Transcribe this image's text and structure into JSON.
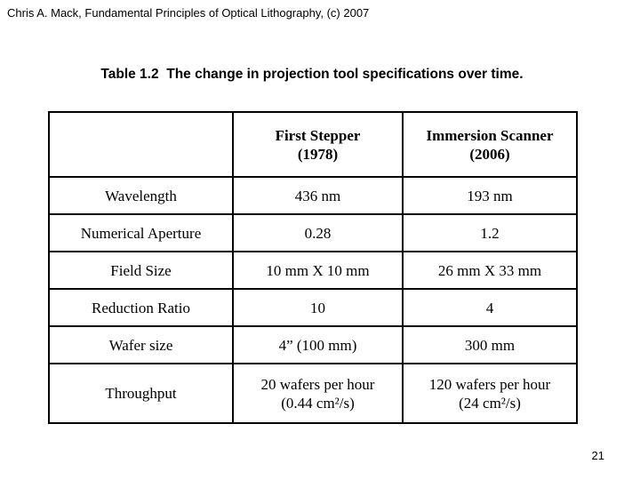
{
  "slide": {
    "attribution": "Chris A. Mack, Fundamental Principles of Optical Lithography, (c) 2007",
    "page_number": "21"
  },
  "colors": {
    "background": "#ffffff",
    "text": "#000000",
    "table_border": "#000000"
  },
  "table": {
    "title": "Table 1.2  The change in projection tool specifications over time.",
    "columns": [
      "",
      "First Stepper\n(1978)",
      "Immersion Scanner\n(2006)"
    ],
    "rows": [
      {
        "label": "Wavelength",
        "values": [
          "436 nm",
          "193 nm"
        ]
      },
      {
        "label": "Numerical Aperture",
        "values": [
          "0.28",
          "1.2"
        ]
      },
      {
        "label": "Field Size",
        "values": [
          "10 mm X 10 mm",
          "26 mm X 33 mm"
        ]
      },
      {
        "label": "Reduction Ratio",
        "values": [
          "10",
          "4"
        ]
      },
      {
        "label": "Wafer size",
        "values": [
          "4” (100 mm)",
          "300 mm"
        ]
      },
      {
        "label": "Throughput",
        "values": [
          "20 wafers per hour\n(0.44 cm²/s)",
          "120 wafers per hour\n(24 cm²/s)"
        ]
      }
    ]
  }
}
